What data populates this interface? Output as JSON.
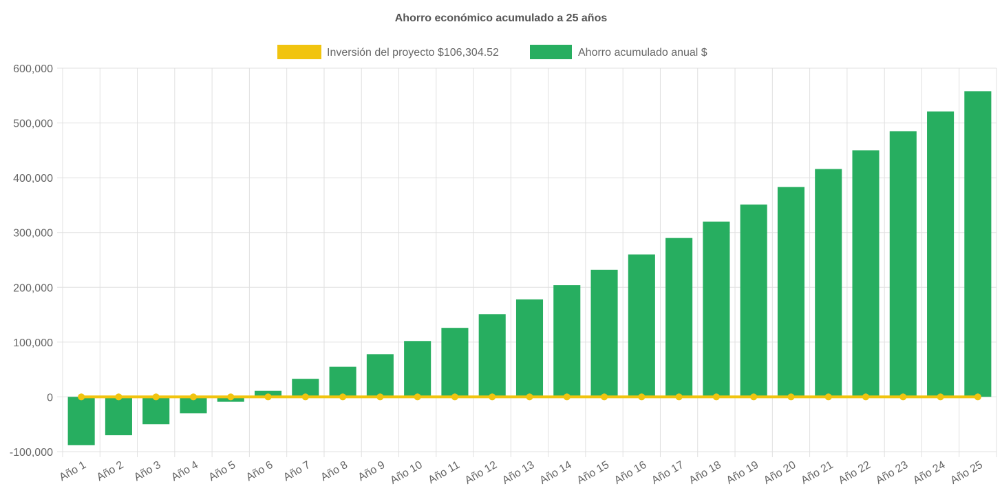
{
  "chart_data": {
    "type": "bar",
    "title": "Ahorro económico acumulado a 25 años",
    "categories": [
      "Año 1",
      "Año 2",
      "Año 3",
      "Año 4",
      "Año 5",
      "Año 6",
      "Año 7",
      "Año 8",
      "Año 9",
      "Año 10",
      "Año 11",
      "Año 12",
      "Año 13",
      "Año 14",
      "Año 15",
      "Año 16",
      "Año 17",
      "Año 18",
      "Año 19",
      "Año 20",
      "Año 21",
      "Año 22",
      "Año 23",
      "Año 24",
      "Año 25"
    ],
    "series": [
      {
        "name": "Inversión del proyecto $106,304.52",
        "type": "line",
        "color": "#f1c40f",
        "values": [
          0,
          0,
          0,
          0,
          0,
          0,
          0,
          0,
          0,
          0,
          0,
          0,
          0,
          0,
          0,
          0,
          0,
          0,
          0,
          0,
          0,
          0,
          0,
          0,
          0
        ]
      },
      {
        "name": "Ahorro acumulado anual $",
        "type": "bar",
        "color": "#27ae60",
        "values": [
          -88000,
          -70000,
          -50000,
          -30000,
          -9000,
          11000,
          33000,
          55000,
          78000,
          102000,
          126000,
          151000,
          178000,
          204000,
          232000,
          260000,
          290000,
          320000,
          351000,
          383000,
          416000,
          450000,
          485000,
          521000,
          558000
        ]
      }
    ],
    "ylim": [
      -100000,
      600000
    ],
    "yticks": [
      -100000,
      0,
      100000,
      200000,
      300000,
      400000,
      500000,
      600000
    ],
    "ytick_labels": [
      "-100,000",
      "0",
      "100,000",
      "200,000",
      "300,000",
      "400,000",
      "500,000",
      "600,000"
    ],
    "legend_position": "top",
    "grid": true
  }
}
